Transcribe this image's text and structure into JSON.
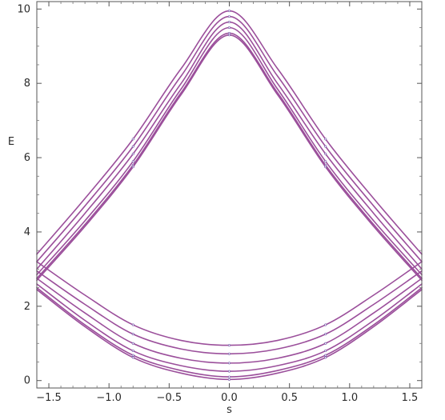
{
  "chart_data": {
    "type": "line",
    "title": "",
    "xlabel": "s",
    "ylabel": "E",
    "xlim": [
      -1.6,
      1.6
    ],
    "ylim": [
      -0.2,
      10.2
    ],
    "xticks": [
      -1.5,
      -1.0,
      -0.5,
      0.0,
      0.5,
      1.0,
      1.5
    ],
    "xtick_labels": [
      "−1.5",
      "−1.0",
      "−0.5",
      "0.0",
      "0.5",
      "1.0",
      "1.5"
    ],
    "yticks": [
      0,
      2,
      4,
      6,
      8,
      10
    ],
    "ytick_labels": [
      "0",
      "2",
      "4",
      "6",
      "8",
      "10"
    ],
    "grid": false,
    "line_color": "#9b4f9b",
    "series_shape": "upper bands: peak_E - a*(1-sech(b*s)); lower bands: bottom_E + c*s^2",
    "upper_series": [
      {
        "s": [
          -1.6,
          -1.2,
          -0.8,
          -0.4,
          0.0,
          0.4,
          0.8,
          1.2,
          1.6
        ],
        "E": [
          3.4,
          4.9,
          6.5,
          8.4,
          9.95,
          8.4,
          6.5,
          4.9,
          3.4
        ]
      },
      {
        "s": [
          -1.6,
          -1.2,
          -0.8,
          -0.4,
          0.0,
          0.4,
          0.8,
          1.2,
          1.6
        ],
        "E": [
          3.2,
          4.7,
          6.3,
          8.2,
          9.8,
          8.2,
          6.3,
          4.7,
          3.2
        ]
      },
      {
        "s": [
          -1.6,
          -1.2,
          -0.8,
          -0.4,
          0.0,
          0.4,
          0.8,
          1.2,
          1.6
        ],
        "E": [
          3.0,
          4.5,
          6.1,
          8.0,
          9.65,
          8.0,
          6.1,
          4.5,
          3.0
        ]
      },
      {
        "s": [
          -1.6,
          -1.2,
          -0.8,
          -0.4,
          0.0,
          0.4,
          0.8,
          1.2,
          1.6
        ],
        "E": [
          2.85,
          4.3,
          5.9,
          7.85,
          9.5,
          7.85,
          5.9,
          4.3,
          2.85
        ]
      },
      {
        "s": [
          -1.6,
          -1.2,
          -0.8,
          -0.4,
          0.0,
          0.4,
          0.8,
          1.2,
          1.6
        ],
        "E": [
          2.75,
          4.2,
          5.8,
          7.75,
          9.35,
          7.75,
          5.8,
          4.2,
          2.75
        ]
      },
      {
        "s": [
          -1.6,
          -1.2,
          -0.8,
          -0.4,
          0.0,
          0.4,
          0.8,
          1.2,
          1.6
        ],
        "E": [
          2.7,
          4.15,
          5.75,
          7.7,
          9.3,
          7.7,
          5.75,
          4.15,
          2.7
        ]
      }
    ],
    "lower_series": [
      {
        "s": [
          -1.6,
          -1.2,
          -0.8,
          -0.4,
          0.0,
          0.4,
          0.8,
          1.2,
          1.6
        ],
        "E": [
          3.2,
          2.3,
          1.5,
          1.08,
          0.95,
          1.08,
          1.5,
          2.3,
          3.2
        ]
      },
      {
        "s": [
          -1.6,
          -1.2,
          -0.8,
          -0.4,
          0.0,
          0.4,
          0.8,
          1.2,
          1.6
        ],
        "E": [
          2.95,
          2.05,
          1.25,
          0.85,
          0.72,
          0.85,
          1.25,
          2.05,
          2.95
        ]
      },
      {
        "s": [
          -1.6,
          -1.2,
          -0.8,
          -0.4,
          0.0,
          0.4,
          0.8,
          1.2,
          1.6
        ],
        "E": [
          2.75,
          1.82,
          1.0,
          0.6,
          0.47,
          0.6,
          1.0,
          1.82,
          2.75
        ]
      },
      {
        "s": [
          -1.6,
          -1.2,
          -0.8,
          -0.4,
          0.0,
          0.4,
          0.8,
          1.2,
          1.6
        ],
        "E": [
          2.6,
          1.62,
          0.8,
          0.4,
          0.25,
          0.4,
          0.8,
          1.62,
          2.6
        ]
      },
      {
        "s": [
          -1.6,
          -1.2,
          -0.8,
          -0.4,
          0.0,
          0.4,
          0.8,
          1.2,
          1.6
        ],
        "E": [
          2.5,
          1.5,
          0.68,
          0.27,
          0.1,
          0.27,
          0.68,
          1.5,
          2.5
        ]
      },
      {
        "s": [
          -1.6,
          -1.2,
          -0.8,
          -0.4,
          0.0,
          0.4,
          0.8,
          1.2,
          1.6
        ],
        "E": [
          2.45,
          1.45,
          0.62,
          0.2,
          0.03,
          0.2,
          0.62,
          1.45,
          2.45
        ]
      }
    ]
  }
}
